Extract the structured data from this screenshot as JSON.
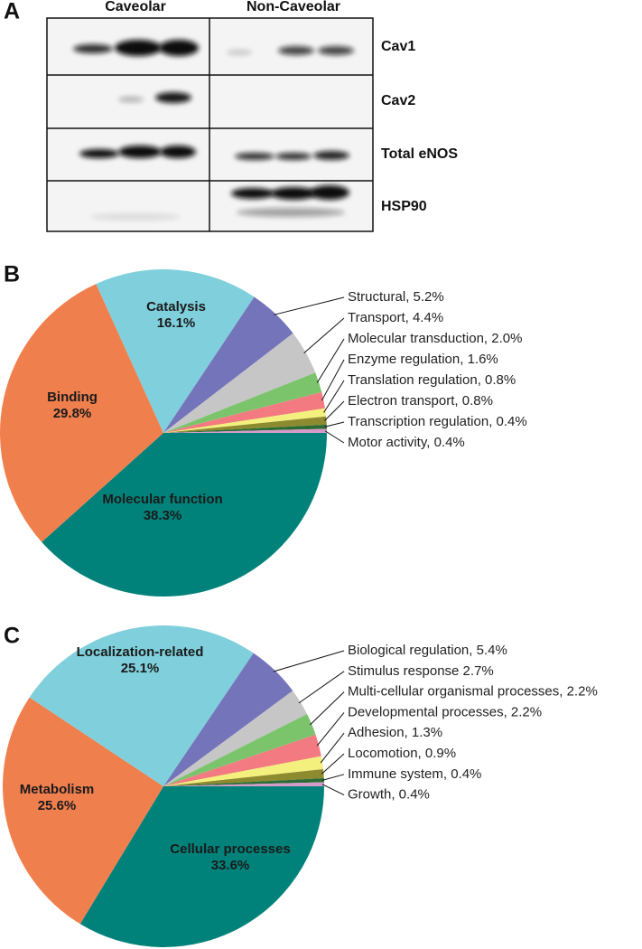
{
  "figure": {
    "panel_label": "A",
    "columns": [
      "Caveolar",
      "Non-Caveolar"
    ],
    "rows": [
      "Cav1",
      "Cav2",
      "Total eNOS",
      "HSP90"
    ]
  },
  "chart_data": [
    {
      "type": "pie",
      "panel_label": "B",
      "labels": [
        [
          "Molecular function",
          "38.3%"
        ],
        [
          "Binding",
          "29.8%"
        ],
        [
          "Catalysis",
          "16.1%"
        ],
        "Structural, 5.2%",
        "Transport, 4.4%",
        "Molecular transduction, 2.0%",
        "Enzyme regulation, 1.6%",
        "Translation regulation, 0.8%",
        "Electron transport, 0.8%",
        "Transcription regulation, 0.4%",
        "Motor activity, 0.4%"
      ],
      "values": [
        38.3,
        29.8,
        16.1,
        5.2,
        4.4,
        2.0,
        1.6,
        0.8,
        0.8,
        0.4,
        0.4
      ],
      "colors": [
        "#00827a",
        "#f07f4e",
        "#7fd0dc",
        "#7474bb",
        "#c6c6c6",
        "#7cc46c",
        "#f27a80",
        "#f4f07e",
        "#8d8a30",
        "#2c6b35",
        "#d79bc9"
      ]
    },
    {
      "type": "pie",
      "panel_label": "C",
      "labels": [
        [
          "Cellular processes",
          "33.6%"
        ],
        [
          "Metabolism",
          "25.6%"
        ],
        [
          "Localization-related",
          "25.1%"
        ],
        "Biological regulation, 5.4%",
        "Stimulus response 2.7%",
        "Multi-cellular organismal processes, 2.2%",
        "Developmental processes, 2.2%",
        "Adhesion, 1.3%",
        "Locomotion, 0.9%",
        "Immune system, 0.4%",
        "Growth, 0.4%"
      ],
      "values": [
        33.6,
        25.6,
        25.1,
        5.4,
        2.7,
        2.2,
        2.2,
        1.3,
        0.9,
        0.4,
        0.4
      ],
      "colors": [
        "#00827a",
        "#f07f4e",
        "#7fd0dc",
        "#7474bb",
        "#c6c6c6",
        "#7cc46c",
        "#f27a80",
        "#f4f07e",
        "#8d8a30",
        "#2c6b35",
        "#d79bc9"
      ]
    }
  ]
}
